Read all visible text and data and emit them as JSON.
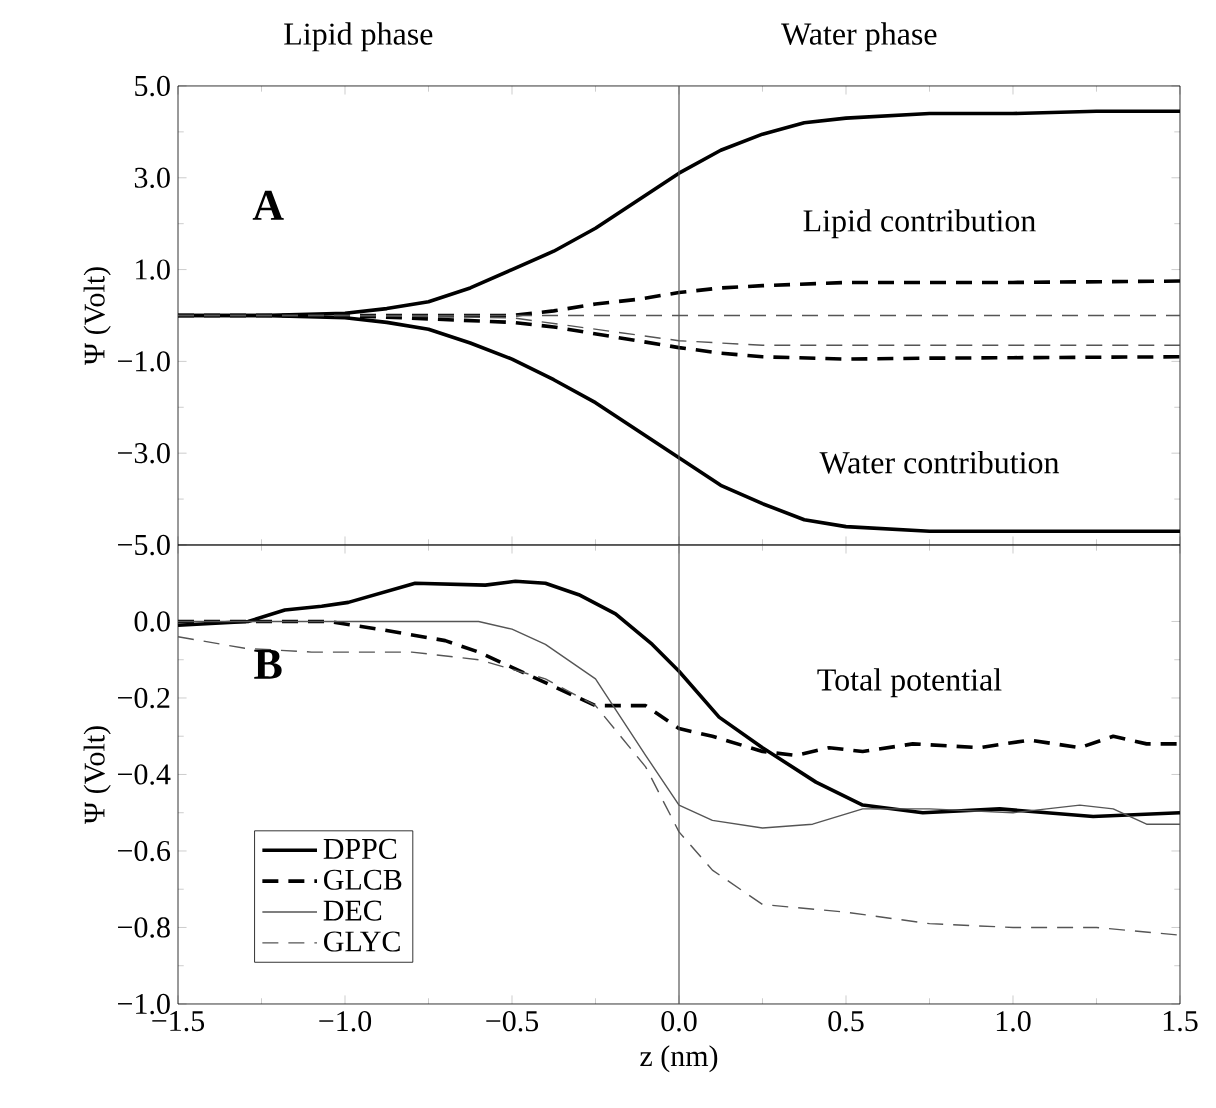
{
  "chart_data": [
    {
      "type": "line",
      "title": "A",
      "ylabel": "Ψ (Volt)",
      "annotations": [
        "Lipid phase",
        "Water phase",
        "Lipid contribution",
        "Water contribution"
      ],
      "xlim": [
        -1.5,
        1.5
      ],
      "ylim": [
        -5.0,
        5.0
      ],
      "xticks": [
        {
          "value": -1.5,
          "label": null
        },
        {
          "value": -1.0,
          "label": null
        },
        {
          "value": -0.5,
          "label": null
        },
        {
          "value": 0,
          "label": null
        },
        {
          "value": 0.5,
          "label": null
        },
        {
          "value": 1.0,
          "label": null
        },
        {
          "value": 1.5,
          "label": null
        }
      ],
      "yticks": [
        {
          "value": -5,
          "label": "−5.0"
        },
        {
          "value": -3,
          "label": "−3.0"
        },
        {
          "value": -1,
          "label": "−1.0"
        },
        {
          "value": 1,
          "label": "1.0"
        },
        {
          "value": 3,
          "label": "3.0"
        },
        {
          "value": 5,
          "label": "5.0"
        }
      ],
      "tick_labels": "y",
      "ref_lines": [
        {
          "axis": "x",
          "value": 0,
          "color": "#555555"
        }
      ],
      "series": [
        {
          "color": "#000000",
          "line_style": "solid",
          "x": [
            -1.5,
            -1.25,
            -1.0,
            -0.875,
            -0.75,
            -0.625,
            -0.5,
            -0.375,
            -0.25,
            -0.125,
            0,
            0.125,
            0.25,
            0.375,
            0.5,
            0.75,
            1.0,
            1.25,
            1.5
          ],
          "values": [
            0,
            0,
            0.05,
            0.15,
            0.3,
            0.6,
            1.0,
            1.4,
            1.9,
            2.5,
            3.1,
            3.6,
            3.95,
            4.2,
            4.3,
            4.4,
            4.4,
            4.45,
            4.45
          ]
        },
        {
          "color": "#000000",
          "line_style": "solid",
          "x": [
            -1.5,
            -1.25,
            -1.0,
            -0.875,
            -0.75,
            -0.625,
            -0.5,
            -0.375,
            -0.25,
            -0.125,
            0,
            0.125,
            0.25,
            0.375,
            0.5,
            0.75,
            1.0,
            1.25,
            1.5
          ],
          "values": [
            0,
            0,
            -0.05,
            -0.15,
            -0.3,
            -0.6,
            -0.95,
            -1.4,
            -1.9,
            -2.5,
            -3.1,
            -3.7,
            -4.1,
            -4.45,
            -4.6,
            -4.7,
            -4.7,
            -4.7,
            -4.7
          ]
        },
        {
          "color": "#000000",
          "line_style": "dashed",
          "x": [
            -1.5,
            -1.0,
            -0.5,
            -0.375,
            -0.25,
            -0.125,
            0,
            0.125,
            0.25,
            0.5,
            0.75,
            1.0,
            1.5
          ],
          "values": [
            0,
            0,
            0,
            0.1,
            0.25,
            0.35,
            0.5,
            0.6,
            0.65,
            0.72,
            0.72,
            0.72,
            0.75
          ]
        },
        {
          "color": "#000000",
          "line_style": "dashed",
          "x": [
            -1.5,
            -1.0,
            -0.5,
            -0.375,
            -0.25,
            -0.125,
            0,
            0.125,
            0.25,
            0.5,
            0.75,
            1.0,
            1.5
          ],
          "values": [
            0,
            0,
            -0.15,
            -0.25,
            -0.4,
            -0.55,
            -0.7,
            -0.82,
            -0.9,
            -0.95,
            -0.93,
            -0.92,
            -0.9
          ]
        },
        {
          "color": "#555555",
          "line_style": "dashed",
          "x": [
            -1.5,
            -1.0,
            -0.5,
            0,
            0.5,
            1.0,
            1.5
          ],
          "values": [
            0,
            0,
            0,
            0,
            0,
            0,
            0
          ]
        },
        {
          "color": "#555555",
          "line_style": "dashed",
          "x": [
            -1.5,
            -1.0,
            -0.5,
            -0.25,
            0,
            0.25,
            0.5,
            1.0,
            1.5
          ],
          "values": [
            0,
            0,
            -0.05,
            -0.3,
            -0.55,
            -0.65,
            -0.65,
            -0.65,
            -0.65
          ]
        }
      ]
    },
    {
      "type": "line",
      "title": "B",
      "xlabel": "z (nm)",
      "ylabel": "Ψ (Volt)",
      "annotations": [
        "Total potential"
      ],
      "xlim": [
        -1.5,
        1.5
      ],
      "ylim": [
        -1.0,
        0.2
      ],
      "xticks": [
        {
          "value": -1.5,
          "label": "−1.5"
        },
        {
          "value": -1.0,
          "label": "−1.0"
        },
        {
          "value": -0.5,
          "label": "−0.5"
        },
        {
          "value": 0,
          "label": "0.0"
        },
        {
          "value": 0.5,
          "label": "0.5"
        },
        {
          "value": 1.0,
          "label": "1.0"
        },
        {
          "value": 1.5,
          "label": "1.5"
        }
      ],
      "yticks": [
        {
          "value": -1.0,
          "label": "−1.0"
        },
        {
          "value": -0.8,
          "label": "−0.8"
        },
        {
          "value": -0.6,
          "label": "−0.6"
        },
        {
          "value": -0.4,
          "label": "−0.4"
        },
        {
          "value": -0.2,
          "label": "−0.2"
        },
        {
          "value": 0,
          "label": "0.0"
        }
      ],
      "legend": "bottom left",
      "ref_lines": [
        {
          "axis": "x",
          "value": 0,
          "color": "#555555"
        }
      ],
      "series": [
        {
          "name": "DPPC",
          "color": "#000000",
          "line_style": "solid",
          "x": [
            -1.5,
            -1.29,
            -1.18,
            -1.07,
            -0.99,
            -0.79,
            -0.58,
            -0.49,
            -0.4,
            -0.3,
            -0.19,
            -0.08,
            0,
            0.12,
            0.25,
            0.41,
            0.55,
            0.73,
            0.96,
            1.24,
            1.5
          ],
          "values": [
            -0.01,
            0.0,
            0.03,
            0.04,
            0.05,
            0.1,
            0.095,
            0.105,
            0.1,
            0.07,
            0.02,
            -0.06,
            -0.13,
            -0.25,
            -0.33,
            -0.42,
            -0.48,
            -0.5,
            -0.49,
            -0.51,
            -0.5
          ]
        },
        {
          "name": "GLCB",
          "color": "#000000",
          "line_style": "dashed",
          "x": [
            -1.5,
            -1.05,
            -0.9,
            -0.7,
            -0.6,
            -0.5,
            -0.35,
            -0.25,
            -0.1,
            0,
            0.1,
            0.25,
            0.35,
            0.45,
            0.55,
            0.7,
            0.9,
            1.05,
            1.2,
            1.3,
            1.4,
            1.5
          ],
          "values": [
            0,
            0,
            -0.02,
            -0.05,
            -0.08,
            -0.12,
            -0.18,
            -0.22,
            -0.22,
            -0.28,
            -0.3,
            -0.34,
            -0.35,
            -0.33,
            -0.34,
            -0.32,
            -0.33,
            -0.31,
            -0.33,
            -0.3,
            -0.32,
            -0.32
          ]
        },
        {
          "name": "DEC",
          "color": "#555555",
          "line_style": "solid",
          "x": [
            -1.5,
            -0.6,
            -0.5,
            -0.4,
            -0.25,
            -0.1,
            0,
            0.1,
            0.25,
            0.4,
            0.55,
            0.75,
            1.0,
            1.2,
            1.3,
            1.4,
            1.5
          ],
          "values": [
            0,
            0,
            -0.02,
            -0.06,
            -0.15,
            -0.35,
            -0.48,
            -0.52,
            -0.54,
            -0.53,
            -0.49,
            -0.49,
            -0.5,
            -0.48,
            -0.49,
            -0.53,
            -0.53
          ]
        },
        {
          "name": "GLYC",
          "color": "#555555",
          "line_style": "dashed",
          "x": [
            -1.5,
            -1.3,
            -1.1,
            -0.8,
            -0.6,
            -0.4,
            -0.25,
            -0.1,
            0,
            0.1,
            0.25,
            0.5,
            0.75,
            1.0,
            1.25,
            1.5
          ],
          "values": [
            -0.04,
            -0.07,
            -0.08,
            -0.08,
            -0.1,
            -0.15,
            -0.22,
            -0.38,
            -0.55,
            -0.65,
            -0.74,
            -0.76,
            -0.79,
            -0.8,
            -0.8,
            -0.82
          ]
        }
      ]
    }
  ]
}
